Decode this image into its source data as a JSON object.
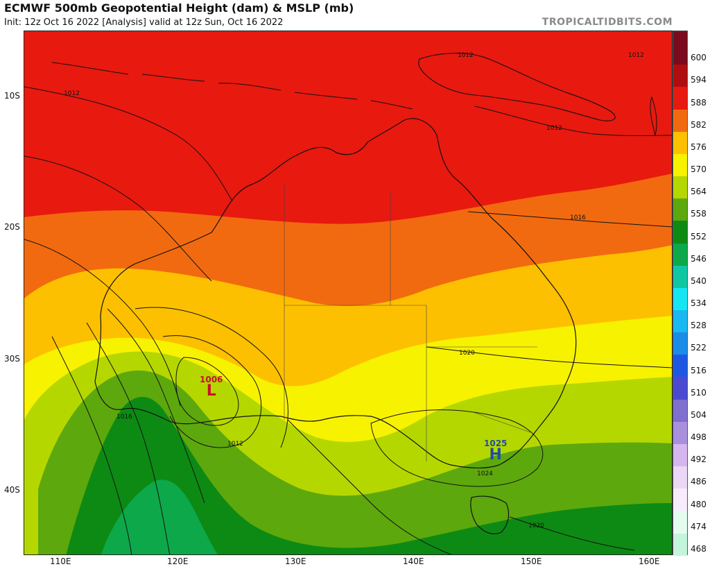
{
  "header": {
    "title": "ECMWF 500mb Geopotential Height (dam) & MSLP (mb)",
    "subtitle": "Init: 12z Oct 16 2022  [Analysis]   valid at 12z Sun, Oct 16 2022",
    "brand": "TROPICALTIDBITS.COM"
  },
  "axes": {
    "lat_labels": [
      "10S",
      "20S",
      "30S",
      "40S"
    ],
    "lon_labels": [
      "110E",
      "120E",
      "130E",
      "140E",
      "150E",
      "160E"
    ]
  },
  "colorbar": {
    "labels": [
      "600",
      "594",
      "588",
      "582",
      "576",
      "570",
      "564",
      "558",
      "552",
      "546",
      "540",
      "534",
      "528",
      "522",
      "516",
      "510",
      "504",
      "498",
      "492",
      "486",
      "480",
      "474",
      "468"
    ],
    "colors": [
      "#7a0a1e",
      "#b00d10",
      "#e8190f",
      "#f26a10",
      "#fdc000",
      "#f7f200",
      "#b5d700",
      "#5da80d",
      "#0d8a14",
      "#0da84a",
      "#11c7a3",
      "#16e6f2",
      "#1ab8f0",
      "#1b8ce8",
      "#1f58e0",
      "#4a4ad0",
      "#7f6fcf",
      "#a990dc",
      "#d5b6ef",
      "#ead8f6",
      "#f7ecfb",
      "#e4fbf0",
      "#c2f5dc"
    ]
  },
  "pressure_systems": [
    {
      "type": "L",
      "value": "1006",
      "color": "#c8102e"
    },
    {
      "type": "H",
      "value": "1025",
      "color": "#1f4fa0"
    }
  ],
  "isobar_labels": [
    "1012",
    "1012",
    "1012",
    "1012",
    "1016",
    "1016",
    "1020",
    "1020",
    "1024",
    "1012"
  ],
  "map_colors": {
    "c588": "#e8190f",
    "c582": "#f26a10",
    "c576": "#fdc000",
    "c570": "#f7f200",
    "c564": "#b5d700",
    "c558": "#5da80d",
    "c552": "#0d8a14",
    "c546": "#0da84a"
  }
}
